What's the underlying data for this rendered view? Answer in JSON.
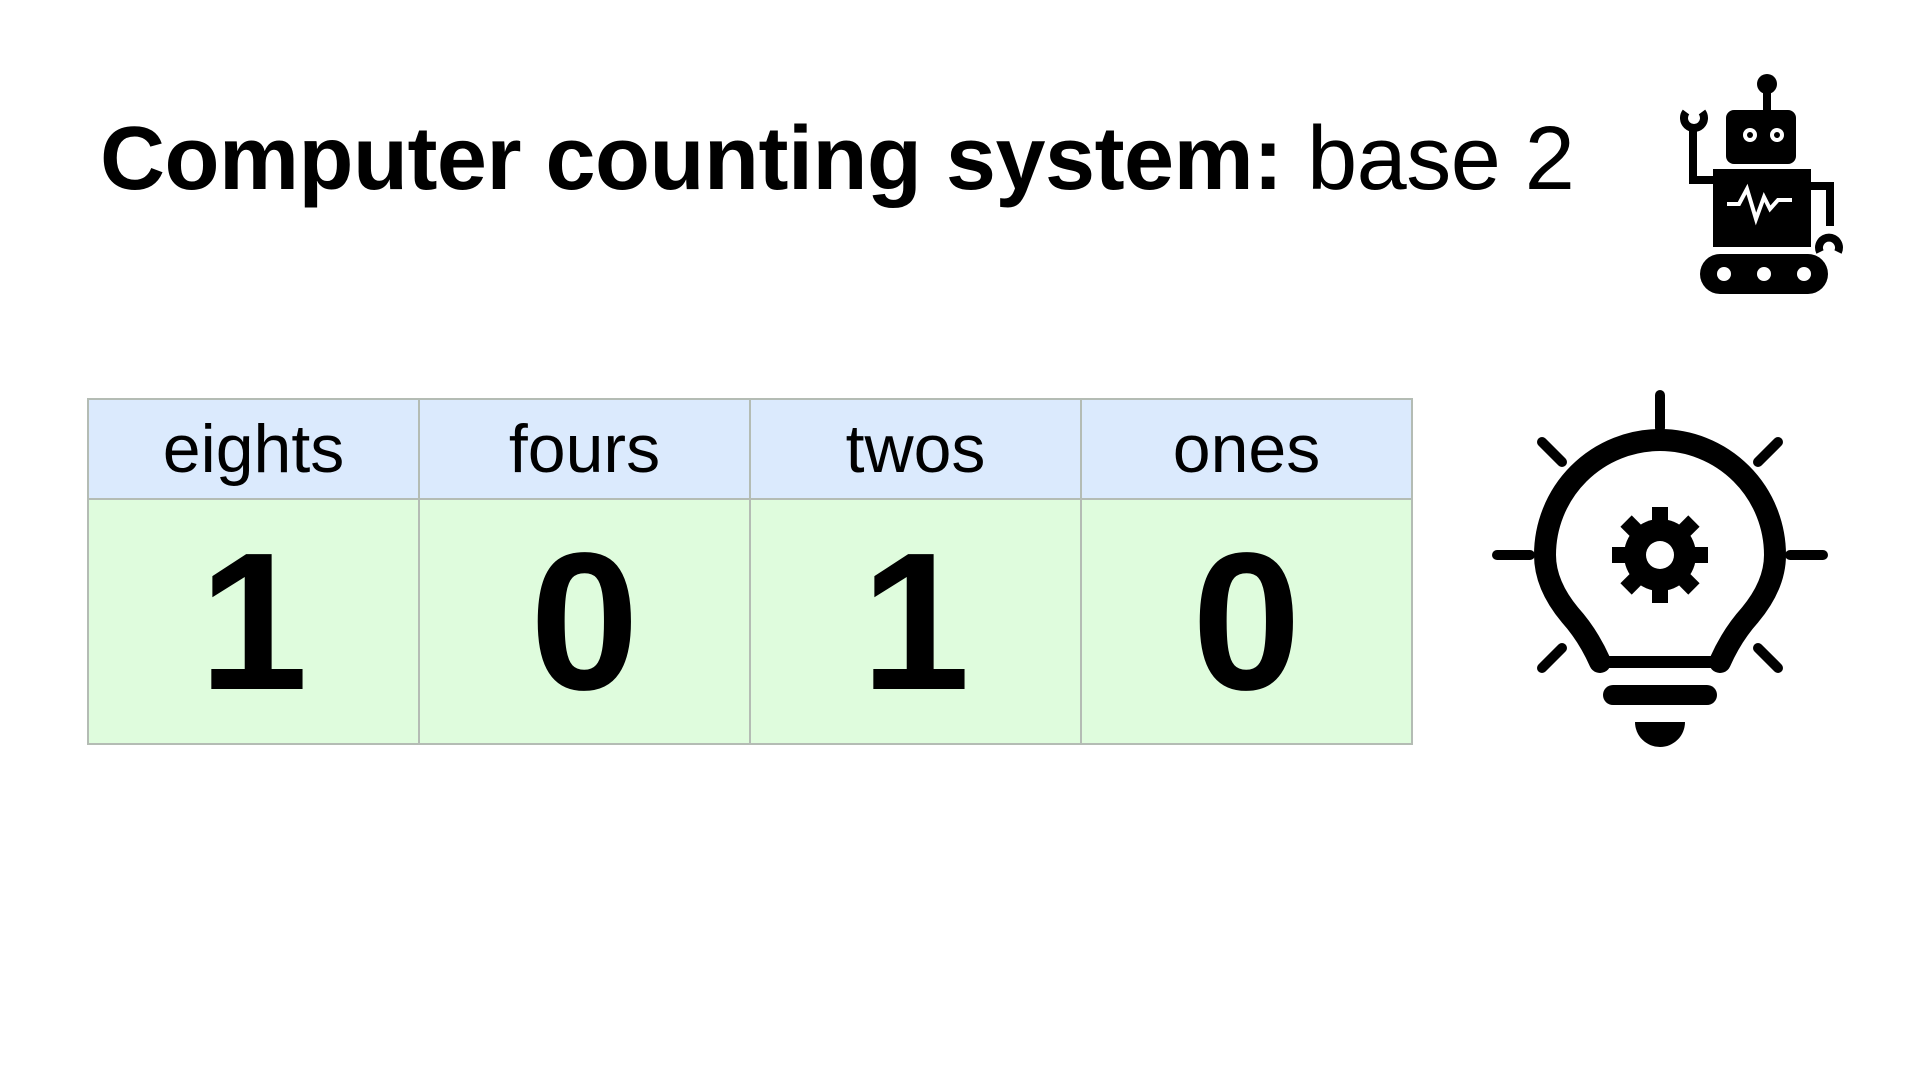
{
  "title": {
    "bold": "Computer counting system:",
    "regular": "base 2"
  },
  "table": {
    "headers": [
      "eights",
      "fours",
      "twos",
      "ones"
    ],
    "digits": [
      "1",
      "0",
      "1",
      "0"
    ]
  },
  "colors": {
    "header_bg": "#dbeafd",
    "body_bg": "#dffcdd",
    "border": "#b4bcb4"
  },
  "icons": [
    "robot-icon",
    "lightbulb-gear-icon"
  ]
}
